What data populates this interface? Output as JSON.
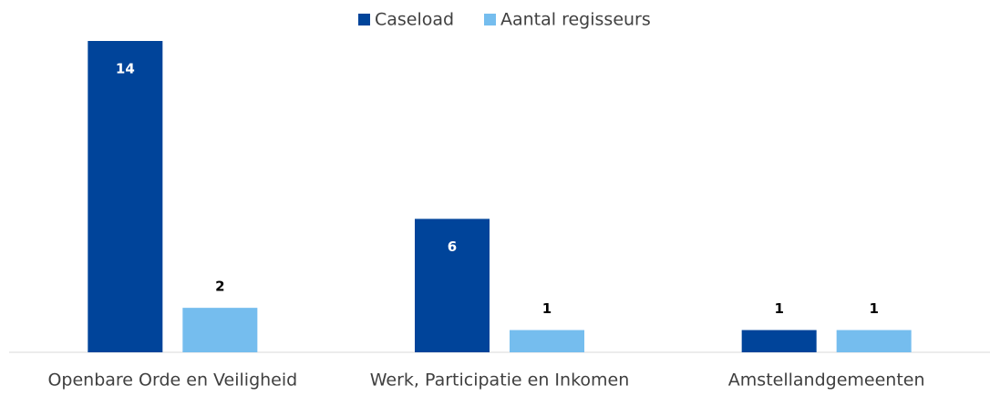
{
  "chart_data": {
    "type": "bar",
    "categories": [
      "Openbare Orde en Veiligheid",
      "Werk, Participatie en Inkomen",
      "Amstellandgemeenten"
    ],
    "series": [
      {
        "name": "Caseload",
        "color": "#00449a",
        "values": [
          14,
          6,
          1
        ]
      },
      {
        "name": "Aantal regisseurs",
        "color": "#75bdee",
        "values": [
          2,
          1,
          1
        ]
      }
    ],
    "legend": "top"
  }
}
